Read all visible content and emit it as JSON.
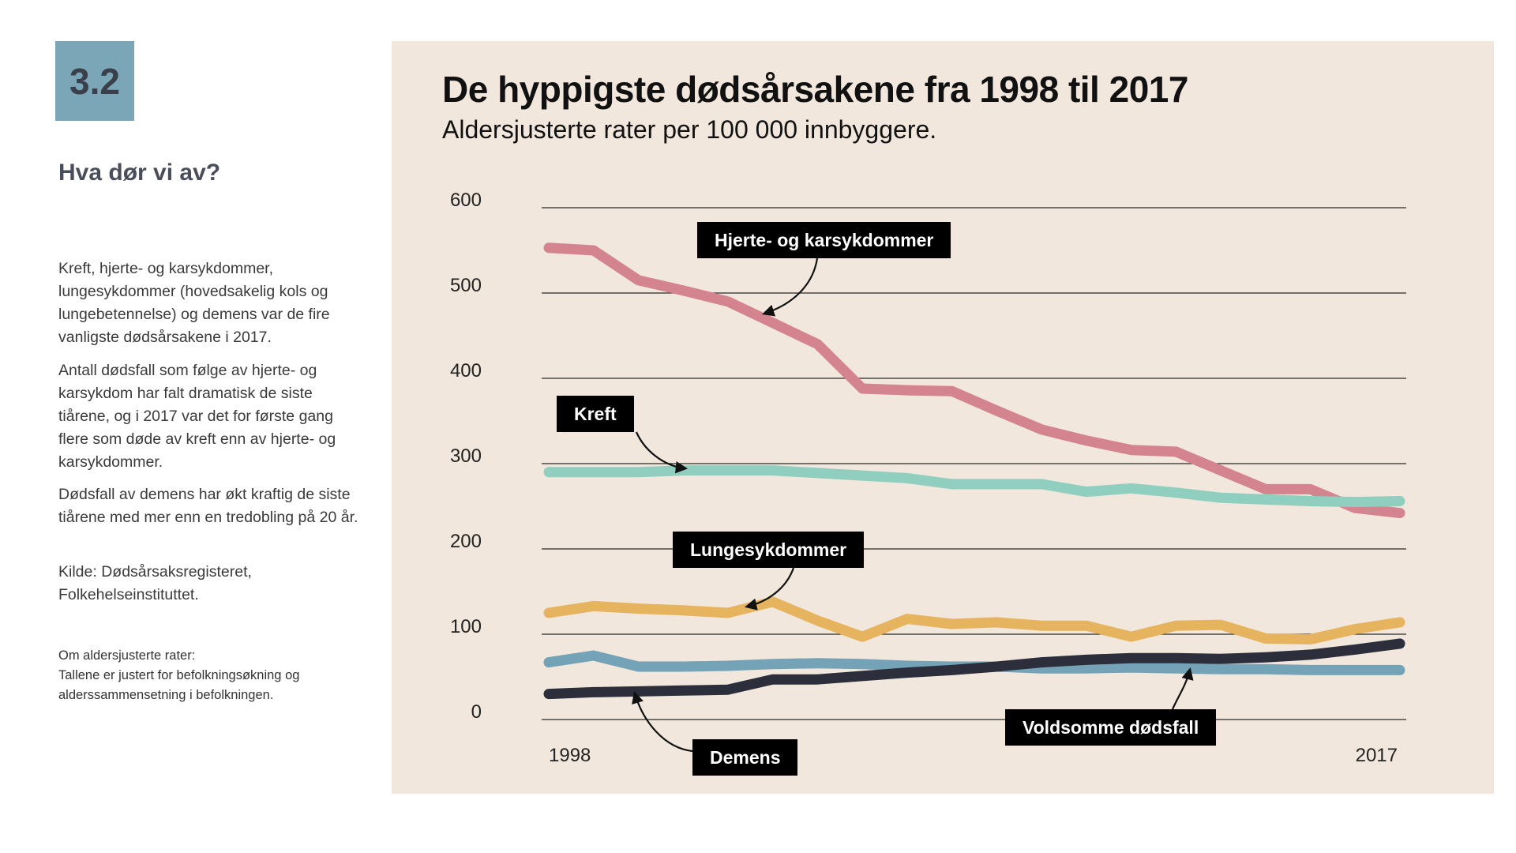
{
  "sidebar": {
    "badge": "3.2",
    "heading": "Hva dør vi av?",
    "paragraphs": [
      "Kreft, hjerte- og karsykdommer, lungesykdommer (hovedsakelig kols og lungebetennelse) og demens var de fire vanligste dødsårsakene i 2017.",
      "Antall dødsfall som følge av hjerte- og karsykdom har falt dramatisk de siste tiårene, og i 2017 var det for første gang flere som døde av kreft enn av hjerte- og karsykdommer.",
      "Dødsfall av demens har økt kraftig de siste tiårene med mer enn en tredobling på 20 år.",
      "Kilde: Dødsårsaksregisteret, Folkehelseinstituttet."
    ],
    "note_title": "Om aldersjusterte rater:",
    "note_text": "Tallene er justert for befolkningsøkning og alderssammensetning i befolkningen."
  },
  "chart_data": {
    "type": "line",
    "title": "De hyppigste dødsårsakene fra 1998 til 2017",
    "subtitle": "Aldersjusterte rater per 100 000 innbyggere.",
    "xlabel": "",
    "ylabel": "",
    "ylim": [
      0,
      600
    ],
    "yticks": [
      600,
      500,
      400,
      300,
      200,
      100,
      0
    ],
    "x_tick_labels": [
      "1998",
      "2017"
    ],
    "x": [
      1998,
      1999,
      2000,
      2001,
      2002,
      2003,
      2004,
      2005,
      2006,
      2007,
      2008,
      2009,
      2010,
      2011,
      2012,
      2013,
      2014,
      2015,
      2016,
      2017
    ],
    "grid": "horizontal",
    "series": [
      {
        "name": "Hjerte- og karsykdommer",
        "color": "#d4848f",
        "values": [
          553,
          550,
          515,
          503,
          490,
          465,
          440,
          388,
          386,
          385,
          362,
          340,
          327,
          316,
          314,
          292,
          270,
          270,
          248,
          242
        ]
      },
      {
        "name": "Kreft",
        "color": "#90cfc0",
        "values": [
          290,
          290,
          290,
          292,
          292,
          292,
          289,
          286,
          283,
          276,
          276,
          276,
          267,
          271,
          266,
          260,
          258,
          256,
          255,
          256
        ]
      },
      {
        "name": "Lungesykdommer",
        "color": "#e6b45f",
        "values": [
          125,
          133,
          130,
          128,
          125,
          138,
          116,
          97,
          118,
          112,
          114,
          110,
          110,
          97,
          110,
          111,
          95,
          94,
          106,
          114
        ]
      },
      {
        "name": "Voldsomme dødsfall",
        "color": "#74a2b6",
        "values": [
          67,
          75,
          62,
          62,
          63,
          65,
          66,
          65,
          63,
          62,
          62,
          60,
          60,
          61,
          60,
          59,
          59,
          58,
          58,
          58
        ]
      },
      {
        "name": "Demens",
        "color": "#2c2f3b",
        "values": [
          30,
          32,
          33,
          34,
          35,
          47,
          47,
          51,
          55,
          58,
          62,
          67,
          70,
          72,
          72,
          71,
          73,
          76,
          82,
          89
        ]
      }
    ],
    "annotations": [
      "Hjerte- og karsykdommer",
      "Kreft",
      "Lungesykdommer",
      "Voldsomme dødsfall",
      "Demens"
    ]
  }
}
